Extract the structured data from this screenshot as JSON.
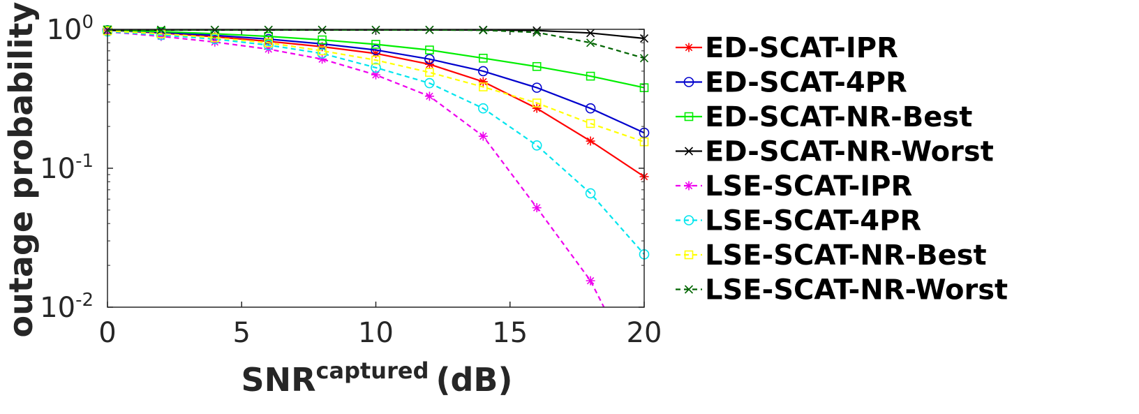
{
  "chart_data": {
    "type": "line",
    "title": "",
    "xlabel_main": "SNR",
    "xlabel_sup": "captured",
    "xlabel_unit": "(dB)",
    "ylabel": "outage probability",
    "yscale": "log",
    "xlim": [
      0,
      20
    ],
    "ylim": [
      0.01,
      1
    ],
    "xticks": [
      "0",
      "5",
      "10",
      "15",
      "20"
    ],
    "yticks": [
      {
        "base": "10",
        "exp": "0"
      },
      {
        "base": "10",
        "exp": "-1"
      },
      {
        "base": "10",
        "exp": "-2"
      }
    ],
    "legend_position": "outside-right",
    "series": [
      {
        "name": "ED-SCAT-IPR",
        "color": "#ff0000",
        "dash": "solid",
        "marker": "star",
        "x": [
          0,
          2,
          4,
          6,
          8,
          10,
          12,
          14,
          16,
          18,
          20
        ],
        "y": [
          0.985,
          0.94,
          0.885,
          0.82,
          0.75,
          0.67,
          0.56,
          0.42,
          0.27,
          0.157,
          0.087
        ]
      },
      {
        "name": "ED-SCAT-4PR",
        "color": "#0000cd",
        "dash": "solid",
        "marker": "circle",
        "x": [
          0,
          2,
          4,
          6,
          8,
          10,
          12,
          14,
          16,
          18,
          20
        ],
        "y": [
          0.985,
          0.95,
          0.905,
          0.85,
          0.785,
          0.71,
          0.61,
          0.5,
          0.38,
          0.27,
          0.18
        ]
      },
      {
        "name": "ED-SCAT-NR-Best",
        "color": "#00ee00",
        "dash": "solid",
        "marker": "square",
        "x": [
          0,
          2,
          4,
          6,
          8,
          10,
          12,
          14,
          16,
          18,
          20
        ],
        "y": [
          0.99,
          0.965,
          0.93,
          0.89,
          0.84,
          0.78,
          0.71,
          0.62,
          0.54,
          0.46,
          0.38
        ]
      },
      {
        "name": "ED-SCAT-NR-Worst",
        "color": "#000000",
        "dash": "solid",
        "marker": "x",
        "x": [
          0,
          2,
          4,
          6,
          8,
          10,
          12,
          14,
          16,
          18,
          20
        ],
        "y": [
          0.99,
          0.99,
          0.99,
          0.99,
          0.99,
          0.99,
          0.99,
          0.99,
          0.98,
          0.94,
          0.86
        ]
      },
      {
        "name": "LSE-SCAT-IPR",
        "color": "#ee00ee",
        "dash": "dashed",
        "marker": "star",
        "x": [
          0,
          2,
          4,
          6,
          8,
          10,
          12,
          14,
          16,
          18,
          18.5
        ],
        "y": [
          0.96,
          0.89,
          0.81,
          0.72,
          0.61,
          0.47,
          0.33,
          0.17,
          0.052,
          0.0155,
          0.01
        ]
      },
      {
        "name": "LSE-SCAT-4PR",
        "color": "#00e5ee",
        "dash": "dashed",
        "marker": "circle",
        "x": [
          0,
          2,
          4,
          6,
          8,
          10,
          12,
          14,
          16,
          18,
          20
        ],
        "y": [
          0.965,
          0.91,
          0.85,
          0.77,
          0.67,
          0.53,
          0.41,
          0.27,
          0.146,
          0.066,
          0.024
        ]
      },
      {
        "name": "LSE-SCAT-NR-Best",
        "color": "#ffff00",
        "dash": "dashed",
        "marker": "square",
        "x": [
          0,
          2,
          4,
          6,
          8,
          10,
          12,
          14,
          16,
          18,
          20
        ],
        "y": [
          0.975,
          0.93,
          0.87,
          0.8,
          0.7,
          0.6,
          0.49,
          0.385,
          0.295,
          0.21,
          0.155
        ]
      },
      {
        "name": "LSE-SCAT-NR-Worst",
        "color": "#006400",
        "dash": "dashed",
        "marker": "x",
        "x": [
          0,
          2,
          4,
          6,
          8,
          10,
          12,
          14,
          16,
          18,
          20
        ],
        "y": [
          0.99,
          0.99,
          0.99,
          0.99,
          0.99,
          0.99,
          0.99,
          0.985,
          0.95,
          0.8,
          0.62
        ]
      }
    ]
  }
}
